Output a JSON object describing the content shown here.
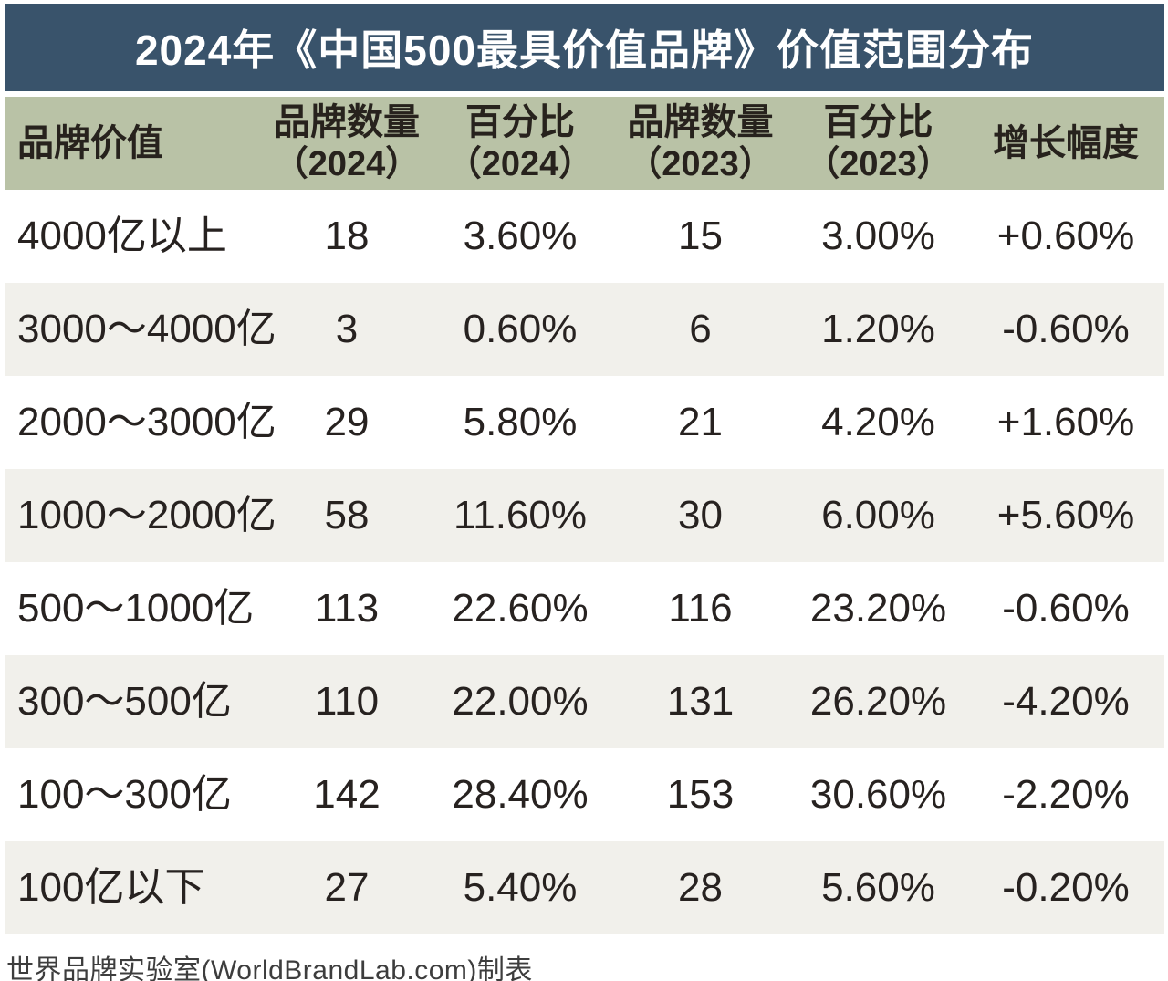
{
  "title": "2024年《中国500最具价值品牌》价值范围分布",
  "colors": {
    "title_bar_bg": "#39536b",
    "title_text": "#ffffff",
    "header_bg": "#b9c2a6",
    "alt_row_bg": "#f1f0eb",
    "body_text": "#272220",
    "footer_text": "#3d3d3d"
  },
  "chart_data": {
    "type": "table",
    "title": "2024年《中国500最具价值品牌》价值范围分布",
    "columns": [
      "品牌价值",
      "品牌数量（2024）",
      "百分比（2024）",
      "品牌数量（2023）",
      "百分比（2023）",
      "增长幅度"
    ],
    "rows": [
      [
        "4000亿以上",
        "18",
        "3.60%",
        "15",
        "3.00%",
        "+0.60%"
      ],
      [
        "3000～4000亿",
        "3",
        "0.60%",
        "6",
        "1.20%",
        "-0.60%"
      ],
      [
        "2000～3000亿",
        "29",
        "5.80%",
        "21",
        "4.20%",
        "+1.60%"
      ],
      [
        "1000～2000亿",
        "58",
        "11.60%",
        "30",
        "6.00%",
        "+5.60%"
      ],
      [
        "500～1000亿",
        "113",
        "22.60%",
        "116",
        "23.20%",
        "-0.60%"
      ],
      [
        "300～500亿",
        "110",
        "22.00%",
        "131",
        "26.20%",
        "-4.20%"
      ],
      [
        "100～300亿",
        "142",
        "28.40%",
        "153",
        "30.60%",
        "-2.20%"
      ],
      [
        "100亿以下",
        "27",
        "5.40%",
        "28",
        "5.60%",
        "-0.20%"
      ]
    ]
  },
  "header_lines": [
    {
      "line1": "品牌价值",
      "line2": ""
    },
    {
      "line1": "品牌数量",
      "line2": "（2024）"
    },
    {
      "line1": "百分比",
      "line2": "（2024）"
    },
    {
      "line1": "品牌数量",
      "line2": "（2023）"
    },
    {
      "line1": "百分比",
      "line2": "（2023）"
    },
    {
      "line1": "增长幅度",
      "line2": ""
    }
  ],
  "footer": {
    "credit": "世界品牌实验室(WorldBrandLab.com)制表"
  }
}
